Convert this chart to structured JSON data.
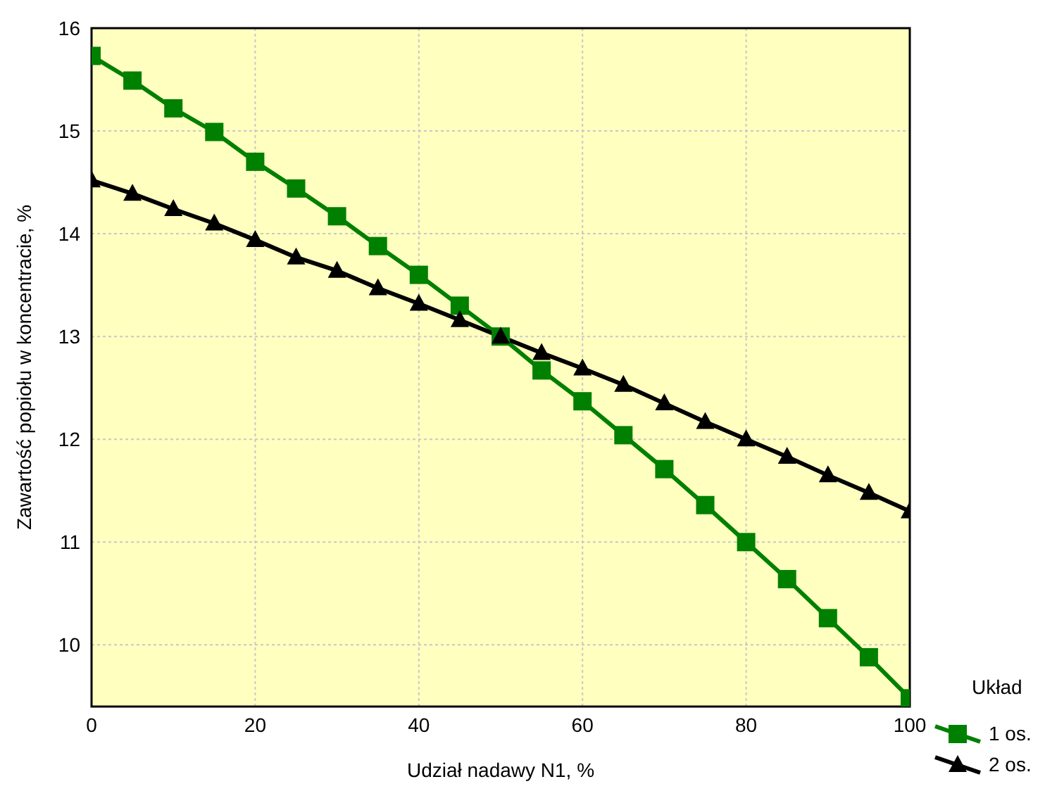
{
  "chart_data": {
    "type": "line",
    "xlabel": "Udział nadawy N1,   %",
    "ylabel": "Zawartość popiołu w koncentracie,  %",
    "legend_title": "Układ",
    "x": [
      0,
      5,
      10,
      15,
      20,
      25,
      30,
      35,
      40,
      45,
      50,
      55,
      60,
      65,
      70,
      75,
      80,
      85,
      90,
      95,
      100
    ],
    "series": [
      {
        "name": "1 os.",
        "color": "#008000",
        "marker": "square",
        "values": [
          15.73,
          15.49,
          15.22,
          14.99,
          14.7,
          14.44,
          14.17,
          13.88,
          13.6,
          13.3,
          13.0,
          12.67,
          12.37,
          12.04,
          11.71,
          11.36,
          11.0,
          10.64,
          10.26,
          9.88,
          9.48
        ]
      },
      {
        "name": "2 os.",
        "color": "#000000",
        "marker": "triangle",
        "values": [
          14.52,
          14.39,
          14.24,
          14.1,
          13.94,
          13.77,
          13.64,
          13.47,
          13.32,
          13.16,
          13.0,
          12.84,
          12.69,
          12.53,
          12.35,
          12.17,
          12.0,
          11.83,
          11.65,
          11.48,
          11.3
        ]
      }
    ],
    "xlim": [
      0,
      100
    ],
    "xticks": [
      0,
      20,
      40,
      60,
      80,
      100
    ],
    "ylim": [
      9.4,
      16
    ],
    "yticks": [
      10,
      11,
      12,
      13,
      14,
      15,
      16
    ],
    "grid": true,
    "legend": "bottom right",
    "line_style": "solid"
  }
}
